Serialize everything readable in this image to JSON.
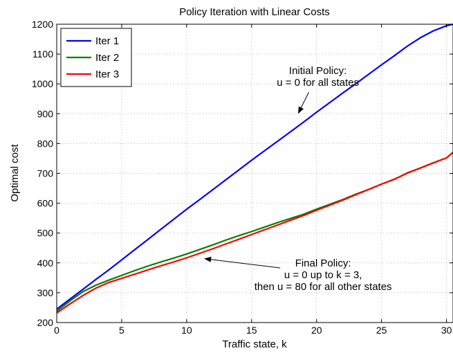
{
  "chart_data": {
    "type": "line",
    "title": "Policy Iteration with Linear Costs",
    "xlabel": "Traffic state, k",
    "ylabel": "Optimal cost",
    "xlim": [
      0,
      30.5
    ],
    "ylim": [
      200,
      1200
    ],
    "xticks": [
      0,
      5,
      10,
      15,
      20,
      25,
      30
    ],
    "yticks": [
      200,
      300,
      400,
      500,
      600,
      700,
      800,
      900,
      1000,
      1100,
      1200
    ],
    "grid": true,
    "legend_position": "top-left",
    "series": [
      {
        "name": "Iter 1",
        "color": "#0000ff",
        "x": [
          0,
          1,
          2,
          3,
          4,
          5,
          6,
          7,
          8,
          9,
          10,
          11,
          12,
          13,
          14,
          15,
          16,
          17,
          18,
          19,
          20,
          21,
          22,
          23,
          24,
          25,
          26,
          27,
          28,
          29,
          30,
          30.5
        ],
        "values": [
          245,
          278,
          311,
          344,
          376,
          410,
          444,
          478,
          512,
          546,
          580,
          612,
          645,
          678,
          711,
          744,
          776,
          808,
          840,
          872,
          905,
          937,
          969,
          1000,
          1032,
          1064,
          1095,
          1127,
          1155,
          1178,
          1195,
          1200
        ]
      },
      {
        "name": "Iter 2",
        "color": "#008000",
        "x": [
          0,
          1,
          2,
          3,
          4,
          5,
          6,
          7,
          8,
          9,
          10,
          11,
          12,
          13,
          14,
          15,
          16,
          17,
          18,
          19,
          20,
          21,
          22,
          23,
          24,
          25,
          26,
          27,
          28,
          29,
          30,
          30.5
        ],
        "values": [
          238,
          272,
          303,
          325,
          342,
          358,
          374,
          389,
          403,
          416,
          430,
          445,
          460,
          476,
          491,
          505,
          520,
          535,
          549,
          563,
          580,
          596,
          612,
          630,
          646,
          664,
          680,
          702,
          718,
          736,
          752,
          770
        ]
      },
      {
        "name": "Iter 3",
        "color": "#ff0000",
        "x": [
          0,
          1,
          2,
          3,
          4,
          5,
          6,
          7,
          8,
          9,
          10,
          11,
          12,
          13,
          14,
          15,
          16,
          17,
          18,
          19,
          20,
          21,
          22,
          23,
          24,
          25,
          26,
          27,
          28,
          29,
          30,
          30.5
        ],
        "values": [
          232,
          262,
          290,
          315,
          334,
          348,
          362,
          376,
          390,
          403,
          417,
          432,
          447,
          463,
          479,
          495,
          511,
          527,
          543,
          559,
          576,
          593,
          610,
          628,
          646,
          664,
          681,
          701,
          718,
          735,
          752,
          771
        ]
      }
    ],
    "annotations": [
      {
        "lines": [
          "Initial Policy:",
          "u = 0 for all states"
        ],
        "text_at": [
          20.1,
          1033
        ],
        "arrow_from": [
          19.4,
          972
        ],
        "arrow_to": [
          18.6,
          902
        ]
      },
      {
        "lines": [
          "Final Policy:",
          "u = 0 up to k = 3,",
          "then u = 80 for all other states"
        ],
        "text_at": [
          20.5,
          388
        ],
        "arrow_from": [
          17.2,
          383
        ],
        "arrow_to": [
          11.4,
          414
        ]
      }
    ]
  }
}
